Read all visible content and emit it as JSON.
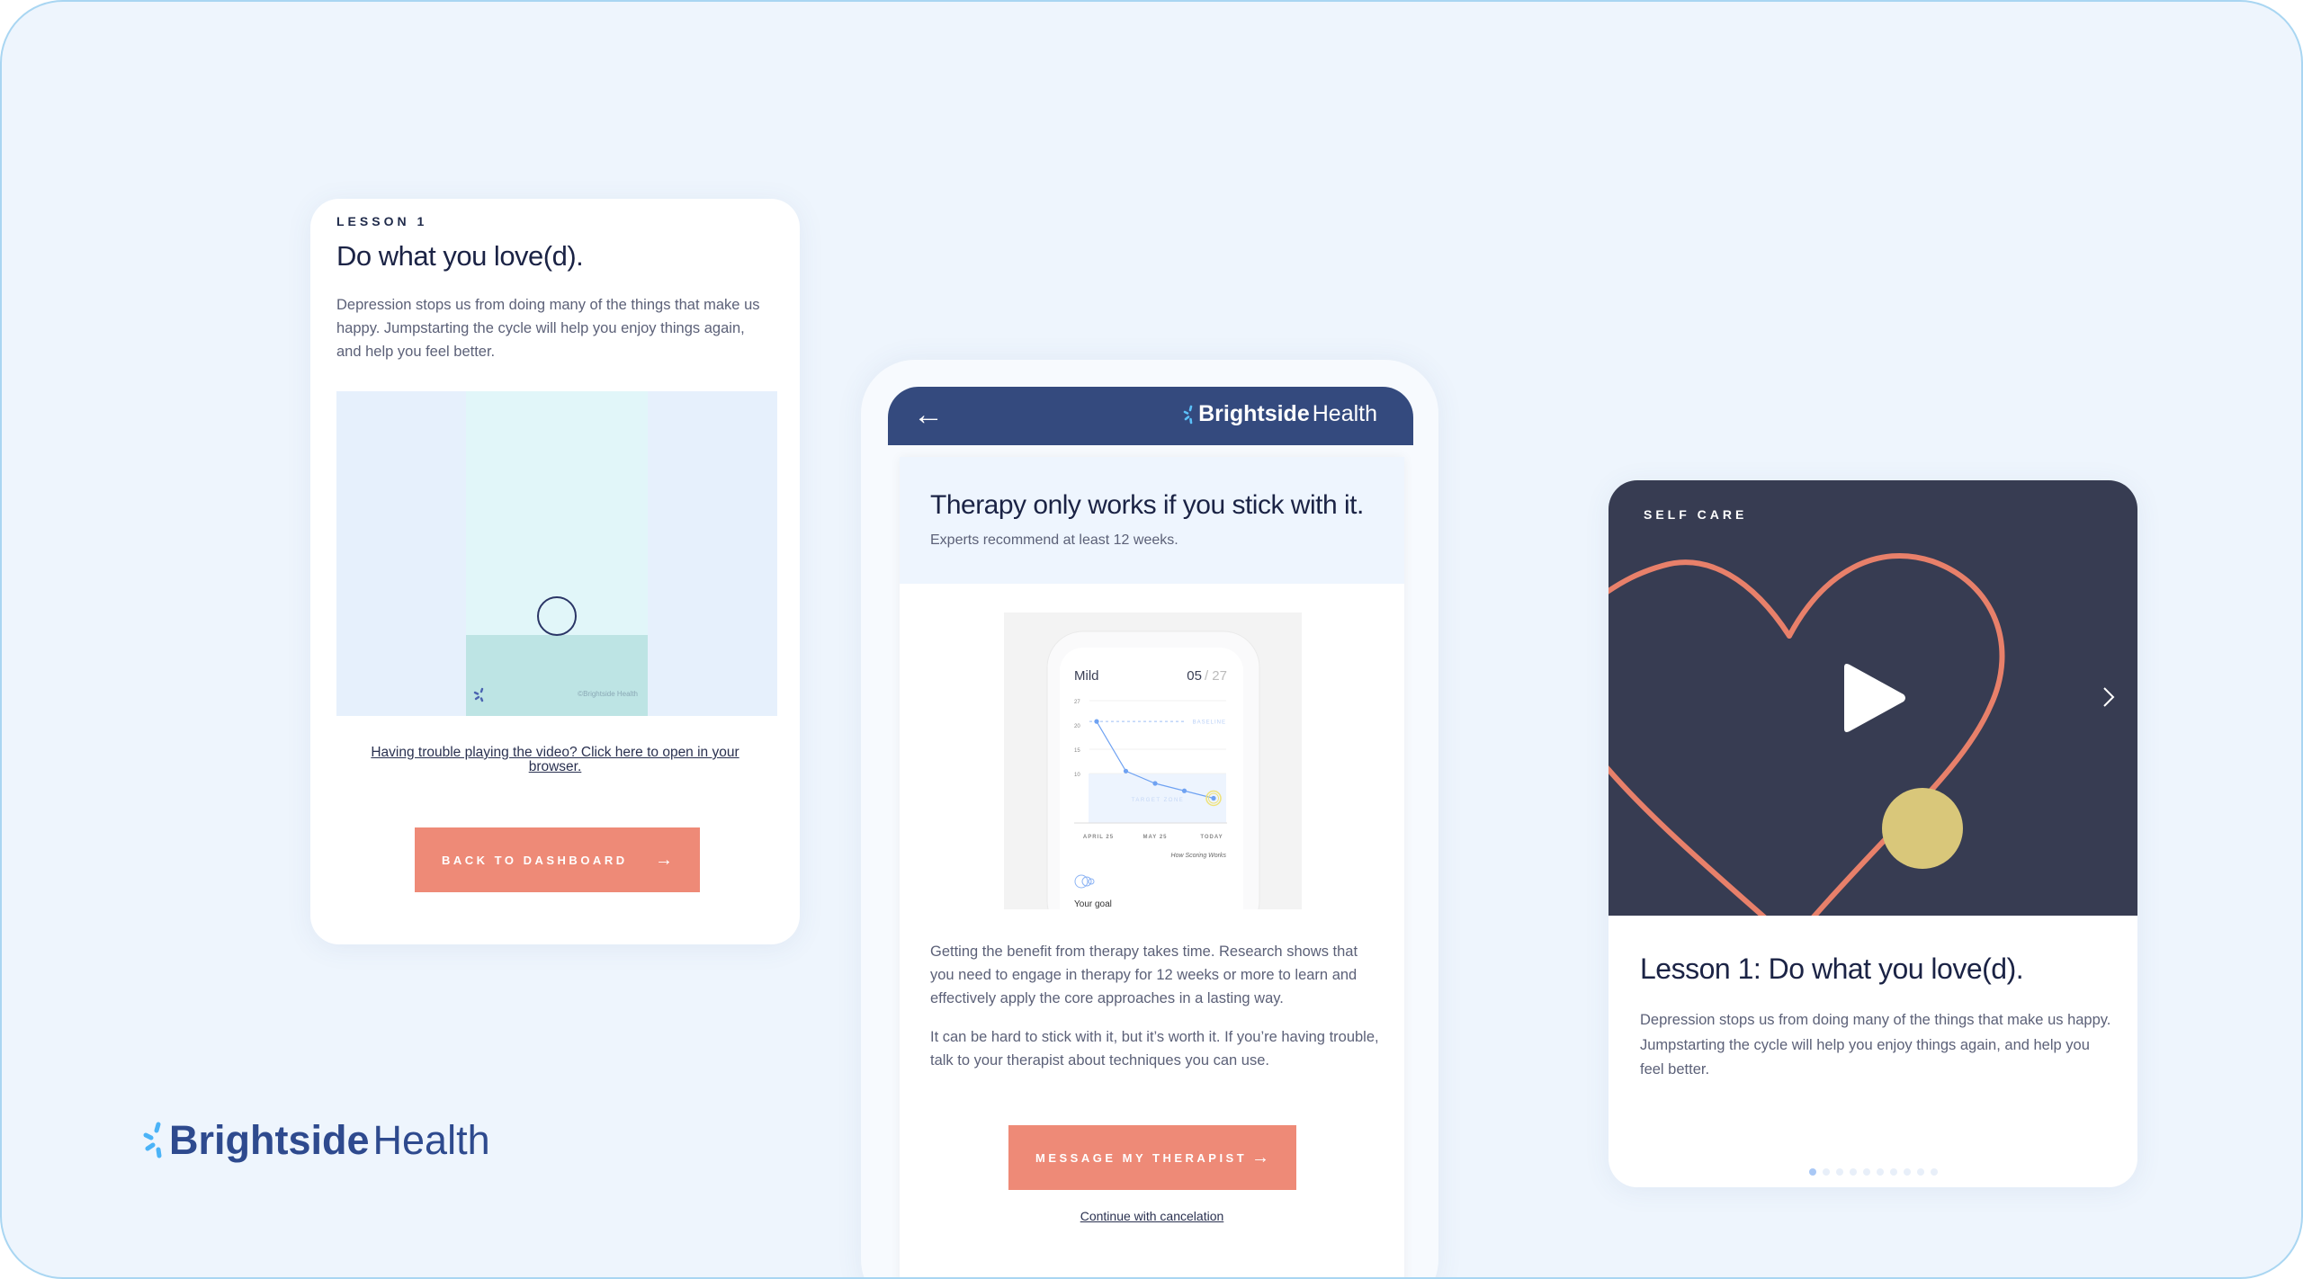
{
  "colors": {
    "background": "#EEF5FD",
    "navy": "#344A7E",
    "coral": "#EE8A77",
    "dark": "#373C52",
    "yellow": "#D9C77A",
    "chart_blue": "#6FA2F2"
  },
  "left_card": {
    "eyebrow": "LESSON 1",
    "title": "Do what you love(d).",
    "body": "Depression stops us from doing many of the things that make us happy. Jumpstarting the cycle will help you enjoy things again, and help you feel better.",
    "video_watermark": "©Brightside Health",
    "video_link": "Having trouble playing the video? Click here to open in your browser.",
    "button": "BACK TO DASHBOARD",
    "button_icon": "arrow-right-icon"
  },
  "middle_phone": {
    "header_logo_bold": "Brightside",
    "header_logo_light": "Health",
    "back_icon": "arrow-left-icon",
    "title": "Therapy only works if you stick with it.",
    "subtitle": "Experts recommend at least 12 weeks.",
    "chart": {
      "severity": "Mild",
      "score": "05",
      "score_max": "/ 27",
      "y_ticks": [
        27,
        20,
        15,
        10
      ],
      "baseline_label": "BASELINE",
      "baseline": 21,
      "target_label": "TARGET ZONE",
      "target_max": 10,
      "x_labels": [
        "APRIL 25",
        "MAY 25",
        "TODAY"
      ],
      "values": [
        21,
        10.5,
        8,
        6.5,
        5
      ],
      "link": "How Scoring Works",
      "goal_label": "Your goal"
    },
    "paragraph1": "Getting the benefit from therapy takes time. Research shows that you need to engage in therapy for 12 weeks or more to learn and effectively apply the core approaches in a lasting way.",
    "paragraph2": "It can be hard to stick with it, but it’s worth it. If you’re having trouble, talk to your therapist about techniques you can use.",
    "button": "MESSAGE MY THERAPIST",
    "button_icon": "arrow-right-icon",
    "link": "Continue with cancelation"
  },
  "right_card": {
    "eyebrow": "SELF CARE",
    "play_icon": "play-icon",
    "next_icon": "chevron-right-icon",
    "title": "Lesson 1: Do what you love(d).",
    "body": "Depression stops us from doing many of the things that make us happy. Jumpstarting the cycle will help you enjoy things again, and help you feel better.",
    "pagination": {
      "total": 10,
      "active": 1
    }
  },
  "brand": {
    "bold": "Brightside",
    "light": "Health"
  }
}
